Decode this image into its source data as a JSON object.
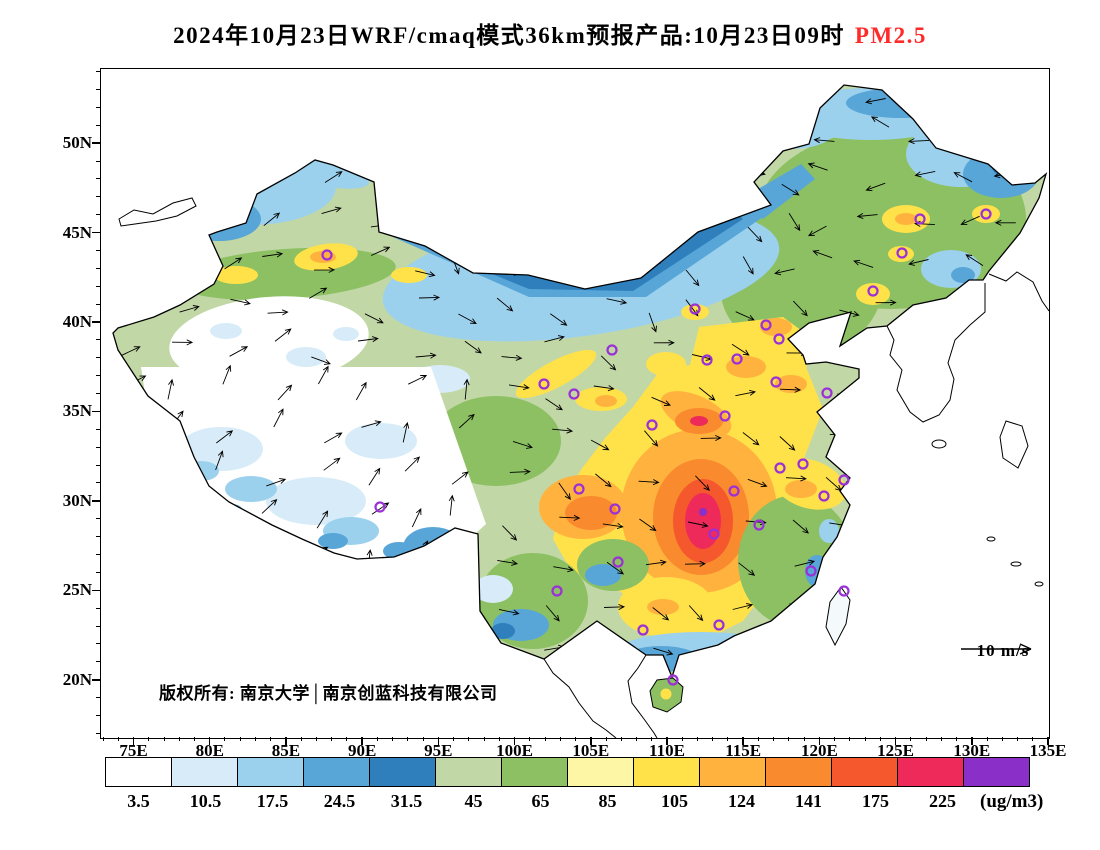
{
  "title": {
    "text": "2024年10月23日WRF/cmaq模式36km预报产品:10月23日09时",
    "highlight": "PM2.5",
    "highlight_color": "#FF2A2A"
  },
  "annotations": {
    "copyright": "版权所有: 南京大学│南京创蓝科技有限公司",
    "wind_reference": "10 m/s"
  },
  "axes": {
    "lon_range": [
      72.8,
      135.0
    ],
    "lat_range": [
      16.8,
      54.2
    ],
    "lon_ticks": [
      {
        "value": 75,
        "label": "75E"
      },
      {
        "value": 80,
        "label": "80E"
      },
      {
        "value": 85,
        "label": "85E"
      },
      {
        "value": 90,
        "label": "90E"
      },
      {
        "value": 95,
        "label": "95E"
      },
      {
        "value": 100,
        "label": "100E"
      },
      {
        "value": 105,
        "label": "105E"
      },
      {
        "value": 110,
        "label": "110E"
      },
      {
        "value": 115,
        "label": "115E"
      },
      {
        "value": 120,
        "label": "120E"
      },
      {
        "value": 125,
        "label": "125E"
      },
      {
        "value": 130,
        "label": "130E"
      },
      {
        "value": 135,
        "label": "135E"
      }
    ],
    "lat_ticks": [
      {
        "value": 50,
        "label": "50N"
      },
      {
        "value": 45,
        "label": "45N"
      },
      {
        "value": 40,
        "label": "40N"
      },
      {
        "value": 35,
        "label": "35N"
      },
      {
        "value": 30,
        "label": "30N"
      },
      {
        "value": 25,
        "label": "25N"
      },
      {
        "value": 20,
        "label": "20N"
      }
    ]
  },
  "colorbar": {
    "values": [
      "3.5",
      "10.5",
      "17.5",
      "24.5",
      "31.5",
      "45",
      "65",
      "85",
      "105",
      "124",
      "141",
      "175",
      "225"
    ],
    "unit": "(ug/m3)"
  },
  "chart_data": {
    "type": "heatmap",
    "subtype": "filled-contour map of PM2.5 with wind vectors over China",
    "title": "2024年10月23日WRF/cmaq模式36km预报产品:10月23日09时 PM2.5",
    "variable": "PM2.5",
    "unit": "ug/m3",
    "region": "China",
    "levels": [
      3.5,
      10.5,
      17.5,
      24.5,
      31.5,
      45,
      65,
      85,
      105,
      124,
      141,
      175,
      225
    ],
    "level_colors": [
      "#FFFFFF",
      "#D7ECF8",
      "#9CD1EE",
      "#58A6D7",
      "#2E7FBC",
      "#C2D7A6",
      "#8CC063",
      "#FCF6A5",
      "#FFE14A",
      "#FFB33E",
      "#F98A2E",
      "#F4582C",
      "#EE2A5B",
      "#8B2FC9"
    ],
    "x_axis": {
      "ticks": [
        "75E",
        "80E",
        "85E",
        "90E",
        "95E",
        "100E",
        "105E",
        "110E",
        "115E",
        "120E",
        "125E",
        "130E",
        "135E"
      ],
      "range_deg_east": [
        72.8,
        135.0
      ]
    },
    "y_axis": {
      "ticks": [
        "50N",
        "45N",
        "40N",
        "35N",
        "30N",
        "25N",
        "20N"
      ],
      "range_deg_north": [
        16.8,
        54.2
      ]
    },
    "wind_vector_reference": "10 m/s",
    "approx_values_by_region": {
      "tibetan_plateau": "0-17 (white to light blue)",
      "tarim_basin_xinjiang": "0-10 (white)",
      "northern_xinjiang_tianshan": "31-105 (green/yellow band, gold spot near Urumqi)",
      "inner_mongolia_gobi_belt": "17-31 (blue belt along Mongolia border)",
      "northeast_china": "31-85 (greens with yellow spots at Harbin/Changchun/Shenyang)",
      "north_china_plain": "65-124 (yellow with gold patches)",
      "fenwei_guanzhong": "85-124",
      "sichuan_basin": "85-141 (gold-orange core)",
      "central_china_hubei_hunan": "105-225+ (orange-red core, small >225 spot)",
      "southeast_coast": "17-65 (green with blue coastal spots)",
      "south_coast_guangxi_guangdong": "10-85 (yellow inland, blue along coast)",
      "yunnan_guizhou": "17-65"
    }
  }
}
